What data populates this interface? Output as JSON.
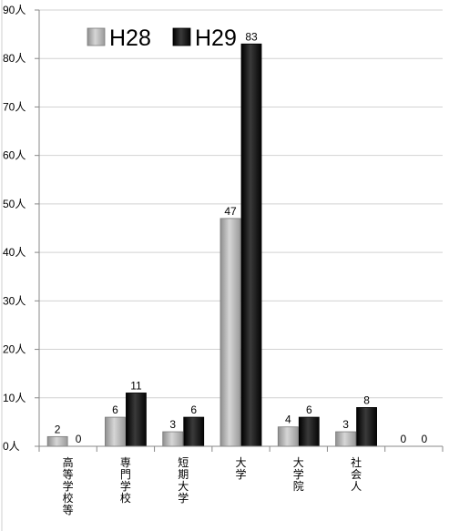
{
  "chart_data": {
    "type": "bar",
    "categories": [
      "高等学校等",
      "専門学校",
      "短期大学",
      "大学",
      "大学院",
      "社会人",
      ""
    ],
    "series": [
      {
        "name": "H28",
        "values": [
          2,
          6,
          3,
          47,
          4,
          3,
          0
        ]
      },
      {
        "name": "H29",
        "values": [
          0,
          11,
          6,
          83,
          6,
          8,
          0
        ]
      }
    ],
    "y_ticks": [
      "0人",
      "10人",
      "20人",
      "30人",
      "40人",
      "50人",
      "60人",
      "70人",
      "80人",
      "90人"
    ],
    "ylim": [
      0,
      90
    ],
    "grid": true,
    "legend": "top-left",
    "colors": {
      "H28": "#b9b9b9",
      "H29": "#1c1c1c"
    }
  }
}
